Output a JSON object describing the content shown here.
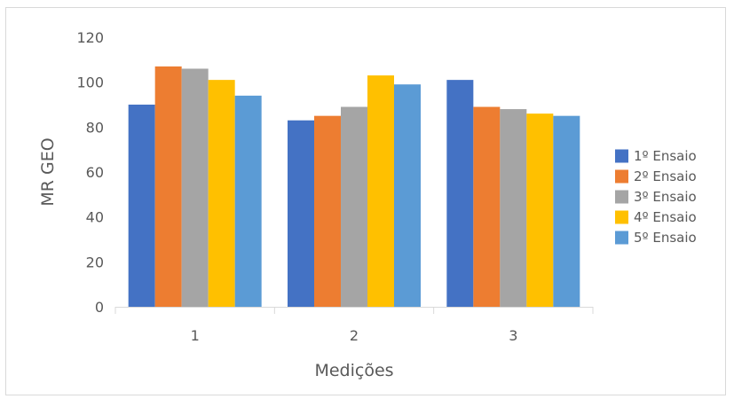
{
  "chart_data": {
    "type": "bar",
    "title": "",
    "xlabel": "Medições",
    "ylabel": "MR GEO",
    "ylim": [
      0,
      120
    ],
    "yticks": [
      0,
      20,
      40,
      60,
      80,
      100,
      120
    ],
    "grid": false,
    "legend_position": "right",
    "categories": [
      "1",
      "2",
      "3"
    ],
    "series": [
      {
        "name": "1º Ensaio",
        "color": "#4472C4",
        "values": [
          90,
          83,
          101
        ]
      },
      {
        "name": "2º Ensaio",
        "color": "#ED7D31",
        "values": [
          107,
          85,
          89
        ]
      },
      {
        "name": "3º Ensaio",
        "color": "#A5A5A5",
        "values": [
          106,
          89,
          88
        ]
      },
      {
        "name": "4º Ensaio",
        "color": "#FFC000",
        "values": [
          101,
          103,
          86
        ]
      },
      {
        "name": "5º Ensaio",
        "color": "#5B9BD5",
        "values": [
          94,
          99,
          85
        ]
      }
    ]
  }
}
